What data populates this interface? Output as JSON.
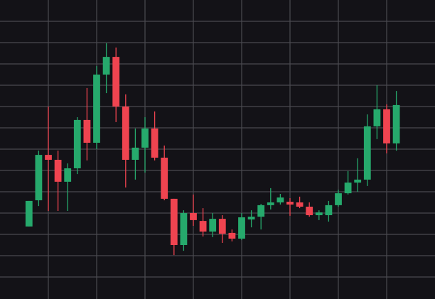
{
  "chart_data": {
    "type": "candlestick",
    "x": [
      0,
      1,
      2,
      3,
      4,
      5,
      6,
      7,
      8,
      9,
      10,
      11,
      12,
      13,
      14,
      15,
      16,
      17,
      18,
      19,
      20,
      21,
      22,
      23,
      24,
      25,
      26,
      27,
      28,
      29,
      30,
      31,
      32,
      33,
      34,
      35,
      36,
      37,
      38
    ],
    "open": [
      3.37,
      4.6,
      6.73,
      6.5,
      5.47,
      6.1,
      8.37,
      7.3,
      10.5,
      11.33,
      9,
      6.5,
      7.07,
      7.97,
      6.6,
      4.67,
      2.5,
      4,
      3.63,
      3.13,
      3.73,
      3.07,
      2.8,
      3.7,
      3.83,
      4.37,
      4.5,
      4.53,
      4.5,
      4.3,
      3.9,
      3.9,
      4.37,
      4.93,
      5.43,
      5.57,
      8.07,
      8.87,
      7.27
    ],
    "high": [
      4.57,
      6.93,
      9,
      6.93,
      6.33,
      8.5,
      9.87,
      10.9,
      11.97,
      11.77,
      9.57,
      7.97,
      8.5,
      8.77,
      7.17,
      4.67,
      4.13,
      4.87,
      4.23,
      4,
      3.9,
      3.23,
      4,
      4.13,
      4.43,
      5.17,
      4.9,
      4.7,
      4.77,
      4.5,
      4.13,
      4.57,
      5.1,
      5.97,
      6.57,
      8.63,
      10,
      9.1,
      9.73
    ],
    "low": [
      3.37,
      4.33,
      4.1,
      4.1,
      4.1,
      5.83,
      6.47,
      7,
      9.63,
      8.27,
      5.2,
      5.57,
      5.9,
      6.47,
      4.6,
      2.03,
      2.23,
      3.4,
      2.9,
      2.87,
      2.6,
      2.67,
      2.73,
      3.33,
      3.23,
      4.17,
      4.4,
      3.87,
      4.23,
      3.83,
      3.67,
      3.6,
      4.3,
      4.87,
      5,
      5.27,
      7.47,
      6.8,
      6.93
    ],
    "close": [
      4.57,
      6.73,
      6.5,
      5.47,
      6.1,
      8.37,
      7.3,
      10.5,
      11.33,
      9,
      6.5,
      7.07,
      7.97,
      6.6,
      4.67,
      2.5,
      4,
      3.67,
      3.13,
      3.73,
      3.03,
      2.8,
      3.8,
      3.83,
      4.37,
      4.5,
      4.73,
      4.4,
      4.3,
      3.9,
      4.03,
      4.37,
      4.93,
      5.43,
      5.57,
      8.07,
      8.87,
      7.27,
      9.07
    ],
    "up_color": "#26a96c",
    "down_color": "#ef4450",
    "xlim": [
      -3,
      42
    ],
    "xticks": [
      2,
      7,
      12,
      17,
      22,
      27,
      32,
      37
    ],
    "ylim": [
      0,
      14
    ],
    "yticks": [
      1,
      2,
      3,
      4,
      5,
      6,
      7,
      8,
      9,
      10,
      11,
      12,
      13
    ],
    "grid": true
  }
}
